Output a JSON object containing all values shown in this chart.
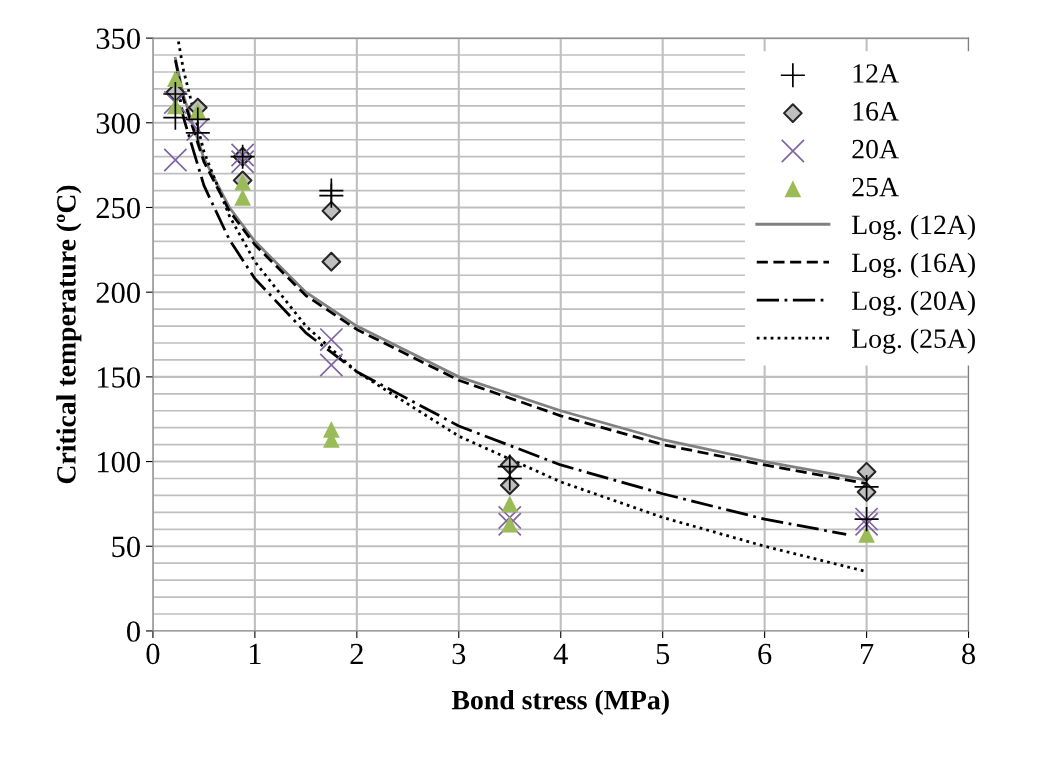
{
  "chart_data": {
    "type": "scatter",
    "xlabel": "Bond stress (MPa)",
    "ylabel": "Critical temperature (ºC)",
    "xlim": [
      0,
      8
    ],
    "ylim": [
      0,
      350
    ],
    "xticks": [
      0,
      1,
      2,
      3,
      4,
      5,
      6,
      7,
      8
    ],
    "yticks": [
      0,
      50,
      100,
      150,
      200,
      250,
      300,
      350
    ],
    "grid": true,
    "legend": "top right",
    "series": [
      {
        "name": "12A",
        "color": "#000000",
        "marker": "cross",
        "x": [
          0.22,
          0.22,
          0.44,
          0.44,
          0.88,
          1.75,
          1.75,
          3.5,
          3.5,
          7,
          7
        ],
        "values": [
          317,
          303,
          302,
          294,
          280,
          260,
          257,
          97,
          90,
          85,
          66
        ]
      },
      {
        "name": "16A",
        "color": "#bfbfbf",
        "marker": "diamond",
        "x": [
          0.22,
          0.44,
          0.88,
          0.88,
          1.75,
          1.75,
          3.5,
          3.5,
          7,
          7
        ],
        "values": [
          318,
          309,
          280,
          266,
          248,
          218,
          98,
          86,
          94,
          82
        ]
      },
      {
        "name": "20A",
        "color": "#8064a2",
        "marker": "x",
        "x": [
          0.22,
          0.22,
          0.44,
          0.88,
          0.88,
          1.75,
          1.75,
          3.5,
          3.5,
          7,
          7
        ],
        "values": [
          312,
          278,
          296,
          281,
          277,
          172,
          157,
          67,
          63,
          66,
          63
        ]
      },
      {
        "name": "25A",
        "color": "#9bbb59",
        "marker": "triangle",
        "x": [
          0.22,
          0.22,
          0.44,
          0.88,
          0.88,
          1.75,
          1.75,
          3.5,
          3.5,
          7
        ],
        "values": [
          326,
          310,
          307,
          265,
          256,
          119,
          113,
          75,
          63,
          57
        ]
      },
      {
        "name": "Log. (12A)",
        "type": "line",
        "color": "#808080",
        "line_style": "solid",
        "x": [
          0.22,
          0.3,
          0.5,
          0.75,
          1,
          1.5,
          2,
          3,
          4,
          5,
          6,
          7
        ],
        "values": [
          338,
          316,
          279,
          250,
          230,
          200,
          180,
          150,
          130,
          113,
          100,
          89
        ]
      },
      {
        "name": "Log. (16A)",
        "type": "line",
        "color": "#000000",
        "line_style": "dashed",
        "x": [
          0.22,
          0.3,
          0.5,
          0.75,
          1,
          1.5,
          2,
          3,
          4,
          5,
          6,
          7
        ],
        "values": [
          337,
          314,
          277,
          248,
          228,
          198,
          178,
          148,
          127,
          110,
          98,
          87
        ]
      },
      {
        "name": "Log. (20A)",
        "type": "line",
        "color": "#000000",
        "line_style": "dashdot",
        "x": [
          0.22,
          0.3,
          0.5,
          0.75,
          1,
          1.5,
          2,
          3,
          4,
          5,
          6,
          6.8
        ],
        "values": [
          330,
          303,
          263,
          231,
          208,
          176,
          153,
          121,
          98,
          81,
          66,
          57
        ]
      },
      {
        "name": "Log. (25A)",
        "type": "line",
        "color": "#000000",
        "line_style": "dotted",
        "x": [
          0.25,
          0.3,
          0.5,
          0.75,
          1,
          1.5,
          2,
          3,
          4,
          5,
          6,
          7
        ],
        "values": [
          348,
          331,
          283,
          245,
          218,
          180,
          153,
          115,
          88,
          67,
          50,
          35
        ]
      }
    ]
  }
}
